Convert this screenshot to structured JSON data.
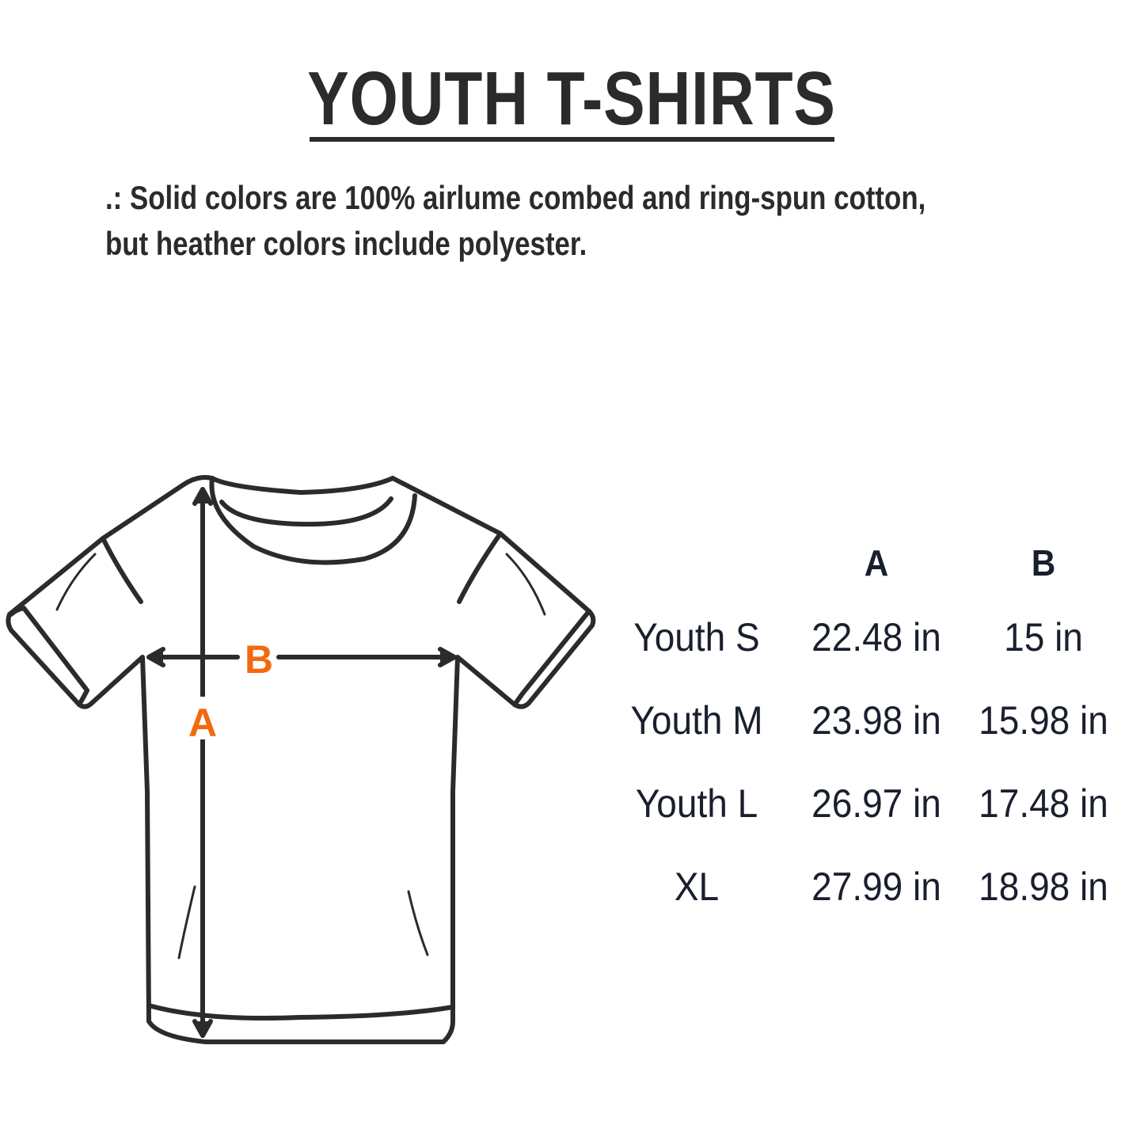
{
  "title": "YOUTH T-SHIRTS",
  "note_lines": [
    ".: Solid colors are 100% airlume combed and ring-spun cotton,",
    "but heather colors include polyester."
  ],
  "diagram": {
    "label_a": "A",
    "label_b": "B",
    "accent_color": "#f26a10",
    "line_color": "#2b2b2b"
  },
  "table": {
    "headers": [
      "",
      "A",
      "B"
    ],
    "rows": [
      {
        "size": "Youth S",
        "a": "22.48 in",
        "b": "15 in"
      },
      {
        "size": "Youth M",
        "a": "23.98 in",
        "b": "15.98 in"
      },
      {
        "size": "Youth L",
        "a": "26.97 in",
        "b": "17.48 in"
      },
      {
        "size": "XL",
        "a": "27.99 in",
        "b": "18.98 in"
      }
    ]
  }
}
